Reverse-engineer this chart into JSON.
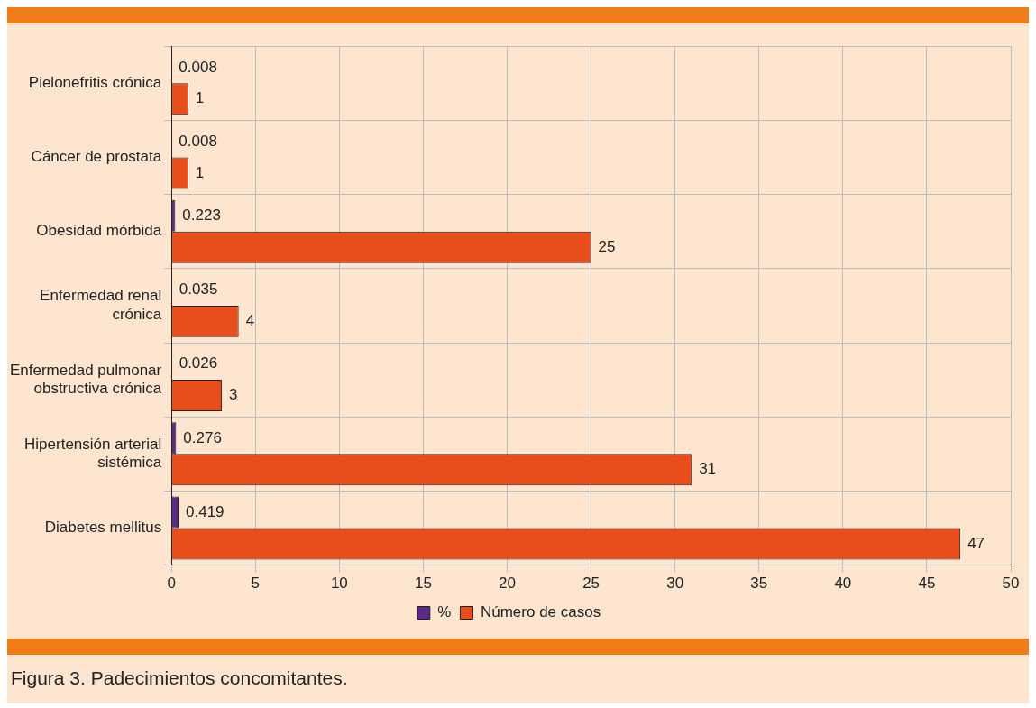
{
  "chart_data": {
    "type": "bar",
    "orientation": "horizontal",
    "title": "Figura 3. Padecimientos concomitantes.",
    "categories": [
      "Pielonefritis crónica",
      "Cáncer de prostata",
      "Obesidad mórbida",
      "Enfermedad renal crónica",
      "Enfermedad pulmonar obstructiva crónica",
      "Hipertensión arterial sistémica",
      "Diabetes mellitus"
    ],
    "series": [
      {
        "name": "%",
        "color": "#5b2a86",
        "values": [
          0.008,
          0.008,
          0.223,
          0.035,
          0.026,
          0.276,
          0.419
        ]
      },
      {
        "name": "Número de casos",
        "color": "#e84e1c",
        "values": [
          1,
          1,
          25,
          4,
          3,
          31,
          47
        ]
      }
    ],
    "xlim": [
      0,
      50
    ],
    "xticks": [
      0,
      5,
      10,
      15,
      20,
      25,
      30,
      35,
      40,
      45,
      50
    ],
    "data_labels": true,
    "grid": true,
    "legend": "bottom"
  }
}
